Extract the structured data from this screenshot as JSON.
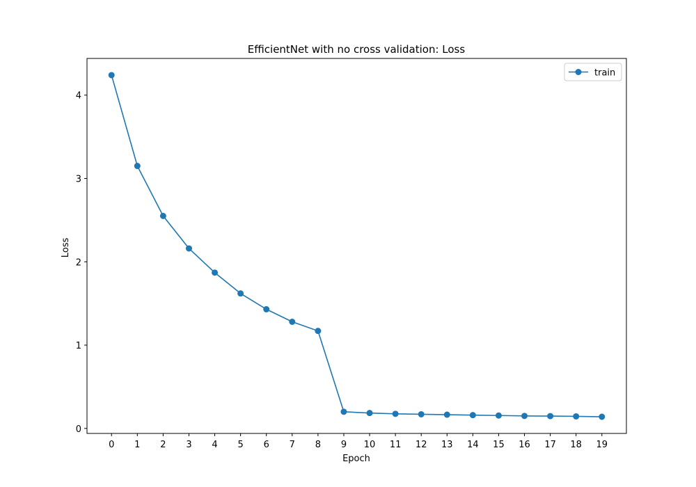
{
  "chart_data": {
    "type": "line",
    "title": "EfficientNet with no cross validation: Loss",
    "xlabel": "Epoch",
    "ylabel": "Loss",
    "x": [
      0,
      1,
      2,
      3,
      4,
      5,
      6,
      7,
      8,
      9,
      10,
      11,
      12,
      13,
      14,
      15,
      16,
      17,
      18,
      19
    ],
    "series": [
      {
        "name": "train",
        "color": "#1f77b4",
        "marker": "circle",
        "values": [
          4.24,
          3.15,
          2.55,
          2.16,
          1.87,
          1.62,
          1.43,
          1.28,
          1.17,
          0.2,
          0.185,
          0.175,
          0.17,
          0.165,
          0.16,
          0.155,
          0.15,
          0.148,
          0.145,
          0.14
        ]
      }
    ],
    "xticks": [
      0,
      1,
      2,
      3,
      4,
      5,
      6,
      7,
      8,
      9,
      10,
      11,
      12,
      13,
      14,
      15,
      16,
      17,
      18,
      19
    ],
    "yticks": [
      0,
      1,
      2,
      3,
      4
    ],
    "xlim": [
      -0.95,
      19.95
    ],
    "ylim": [
      -0.06,
      4.44
    ],
    "grid": false,
    "legend": "top-right"
  }
}
